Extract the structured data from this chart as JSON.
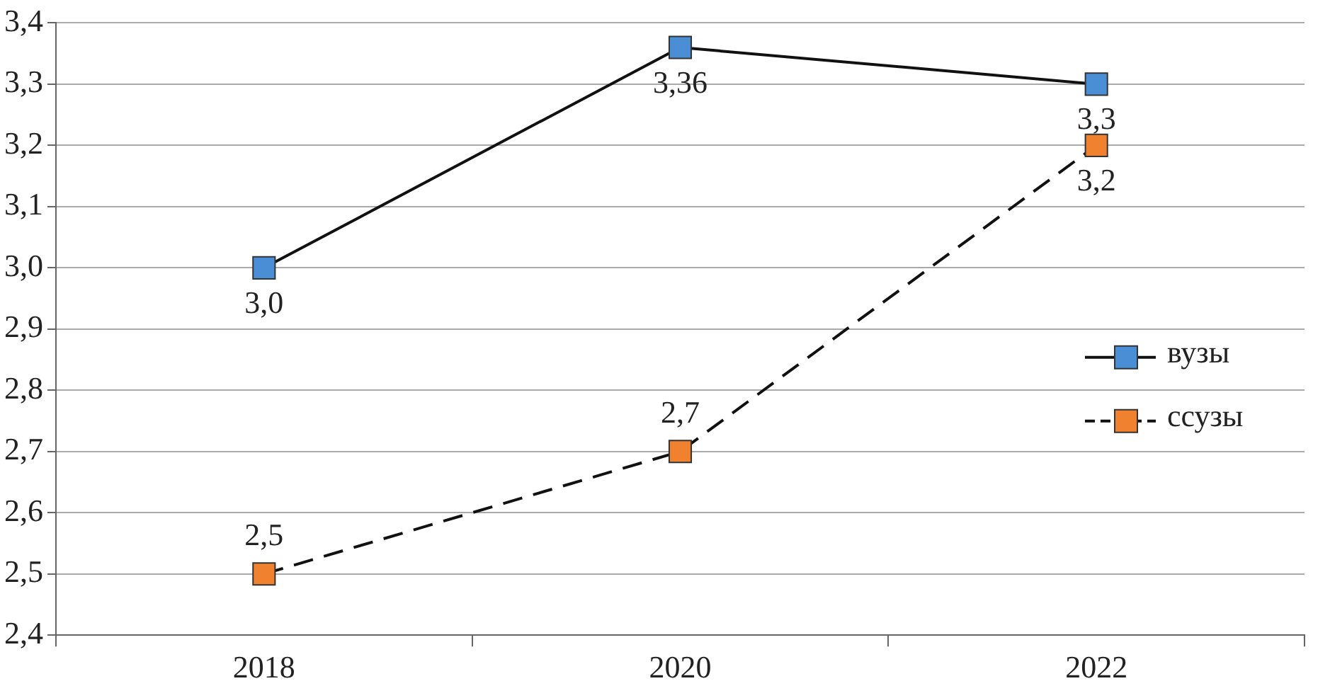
{
  "chart_data": {
    "type": "line",
    "categories": [
      "2018",
      "2020",
      "2022"
    ],
    "series": [
      {
        "name": "вузы",
        "color": "#4a8fd6",
        "values": [
          3.0,
          3.36,
          3.3
        ],
        "value_labels": [
          "3,0",
          "3,36",
          "3,3"
        ],
        "line_style": "solid"
      },
      {
        "name": "ссузы",
        "color": "#f0812f",
        "values": [
          2.5,
          2.7,
          3.2
        ],
        "value_labels": [
          "2,5",
          "2,7",
          "3,2"
        ],
        "line_style": "dashed"
      }
    ],
    "ylim": [
      2.4,
      3.4
    ],
    "yticks": [
      {
        "value": 2.4,
        "label": "2,4"
      },
      {
        "value": 2.5,
        "label": "2,5"
      },
      {
        "value": 2.6,
        "label": "2,6"
      },
      {
        "value": 2.7,
        "label": "2,7"
      },
      {
        "value": 2.8,
        "label": "2,8"
      },
      {
        "value": 2.9,
        "label": "2,9"
      },
      {
        "value": 3.0,
        "label": "3,0"
      },
      {
        "value": 3.1,
        "label": "3,1"
      },
      {
        "value": 3.2,
        "label": "3,2"
      },
      {
        "value": 3.3,
        "label": "3,3"
      },
      {
        "value": 3.4,
        "label": "3,4"
      }
    ],
    "grid": "y",
    "legend": "right",
    "marker": "square"
  }
}
